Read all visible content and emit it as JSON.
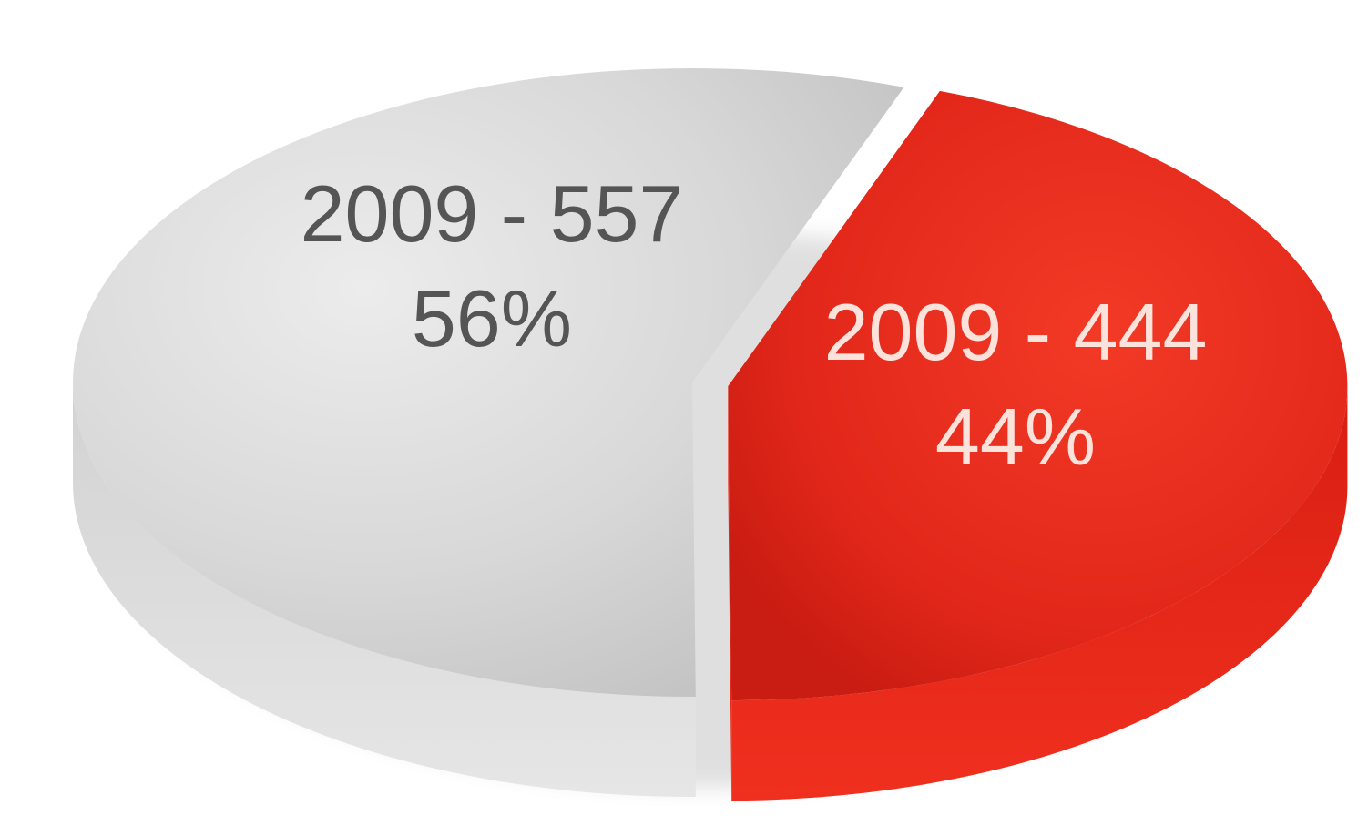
{
  "chart_data": {
    "type": "pie",
    "title": "",
    "slices": [
      {
        "category": "2009",
        "value": 557,
        "percent": 56,
        "label_line1": "2009 - 557",
        "label_line2": "56%",
        "color": "#d9d9d9",
        "label_color": "#555555"
      },
      {
        "category": "2009",
        "value": 444,
        "percent": 44,
        "label_line1": "2009 - 444",
        "label_line2": "44%",
        "color": "#e8281c",
        "label_color": "#fbe3dc"
      }
    ],
    "style": "3d"
  }
}
